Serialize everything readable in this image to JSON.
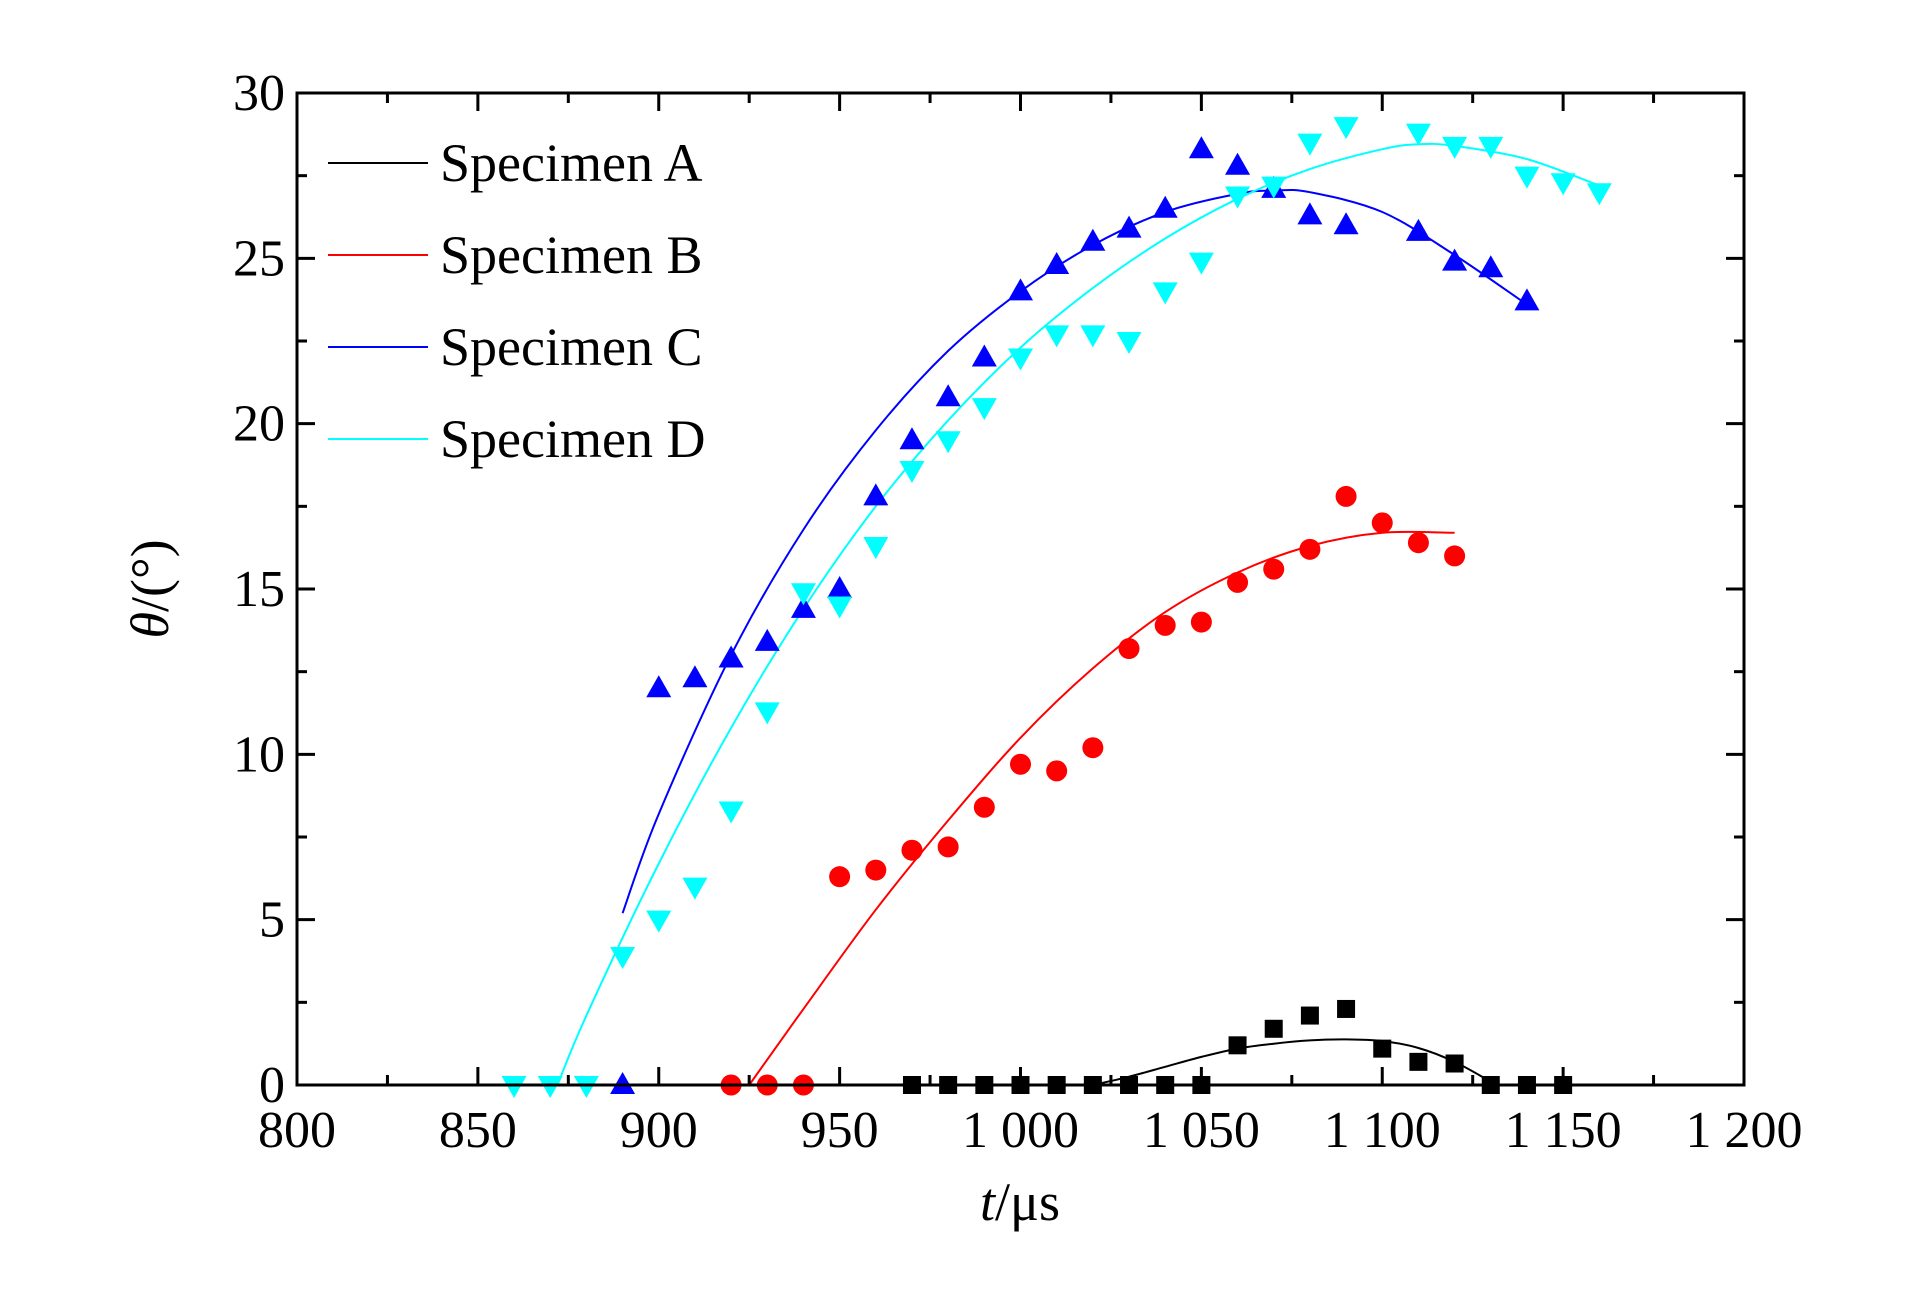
{
  "chart_data": {
    "type": "scatter",
    "xlabel_italic": "t",
    "xlabel_unit": "/μs",
    "ylabel_italic": "θ",
    "ylabel_unit": "/(°)",
    "xlim": [
      800,
      1200
    ],
    "ylim": [
      0,
      30
    ],
    "x_ticks": [
      800,
      850,
      900,
      950,
      1000,
      1050,
      1100,
      1150,
      1200
    ],
    "x_tick_labels": [
      "800",
      "850",
      "900",
      "950",
      "1 000",
      "1 050",
      "1 100",
      "1 150",
      "1 200"
    ],
    "y_ticks": [
      0,
      5,
      10,
      15,
      20,
      25,
      30
    ],
    "y_tick_labels": [
      "0",
      "5",
      "10",
      "15",
      "20",
      "25",
      "30"
    ],
    "grid": false,
    "legend_position": "top-left",
    "series": [
      {
        "name": "Specimen A",
        "color": "#000000",
        "marker": "square",
        "points": [
          [
            970,
            0
          ],
          [
            980,
            0
          ],
          [
            990,
            0
          ],
          [
            1000,
            0
          ],
          [
            1010,
            0
          ],
          [
            1020,
            0
          ],
          [
            1030,
            0
          ],
          [
            1040,
            0
          ],
          [
            1050,
            0
          ],
          [
            1060,
            1.2
          ],
          [
            1070,
            1.7
          ],
          [
            1080,
            2.1
          ],
          [
            1090,
            2.3
          ],
          [
            1100,
            1.1
          ],
          [
            1110,
            0.7
          ],
          [
            1120,
            0.65
          ],
          [
            1130,
            0
          ],
          [
            1140,
            0
          ],
          [
            1150,
            0
          ]
        ],
        "fit": [
          [
            1020,
            0
          ],
          [
            1030,
            0.25
          ],
          [
            1040,
            0.55
          ],
          [
            1050,
            0.85
          ],
          [
            1060,
            1.1
          ],
          [
            1070,
            1.25
          ],
          [
            1080,
            1.35
          ],
          [
            1090,
            1.38
          ],
          [
            1100,
            1.33
          ],
          [
            1110,
            1.12
          ],
          [
            1120,
            0.7
          ],
          [
            1130,
            0.1
          ]
        ]
      },
      {
        "name": "Specimen B",
        "color": "#ff0000",
        "marker": "circle",
        "points": [
          [
            920,
            0
          ],
          [
            930,
            0
          ],
          [
            940,
            0
          ],
          [
            950,
            6.3
          ],
          [
            960,
            6.5
          ],
          [
            970,
            7.1
          ],
          [
            980,
            7.2
          ],
          [
            990,
            8.4
          ],
          [
            1000,
            9.7
          ],
          [
            1010,
            9.5
          ],
          [
            1020,
            10.2
          ],
          [
            1030,
            13.2
          ],
          [
            1040,
            13.9
          ],
          [
            1050,
            14.0
          ],
          [
            1060,
            15.2
          ],
          [
            1070,
            15.6
          ],
          [
            1080,
            16.2
          ],
          [
            1090,
            17.8
          ],
          [
            1100,
            17.0
          ],
          [
            1110,
            16.4
          ],
          [
            1120,
            16.0
          ]
        ],
        "fit": [
          [
            925,
            0
          ],
          [
            940,
            2.3
          ],
          [
            960,
            5.3
          ],
          [
            980,
            8.0
          ],
          [
            1000,
            10.5
          ],
          [
            1020,
            12.6
          ],
          [
            1040,
            14.3
          ],
          [
            1060,
            15.5
          ],
          [
            1080,
            16.3
          ],
          [
            1100,
            16.7
          ],
          [
            1120,
            16.7
          ]
        ]
      },
      {
        "name": "Specimen C",
        "color": "#0000ff",
        "marker": "triangle-up",
        "points": [
          [
            890,
            0
          ],
          [
            900,
            12.0
          ],
          [
            910,
            12.3
          ],
          [
            920,
            12.9
          ],
          [
            930,
            13.4
          ],
          [
            940,
            14.4
          ],
          [
            950,
            15.0
          ],
          [
            960,
            17.8
          ],
          [
            970,
            19.5
          ],
          [
            980,
            20.8
          ],
          [
            990,
            22.0
          ],
          [
            1000,
            24.0
          ],
          [
            1010,
            24.8
          ],
          [
            1020,
            25.5
          ],
          [
            1030,
            25.9
          ],
          [
            1040,
            26.5
          ],
          [
            1050,
            28.3
          ],
          [
            1060,
            27.8
          ],
          [
            1070,
            27.1
          ],
          [
            1080,
            26.3
          ],
          [
            1090,
            26.0
          ],
          [
            1110,
            25.8
          ],
          [
            1120,
            24.9
          ],
          [
            1130,
            24.7
          ],
          [
            1140,
            23.7
          ]
        ],
        "fit": [
          [
            890,
            5.2
          ],
          [
            900,
            8.2
          ],
          [
            920,
            13.0
          ],
          [
            940,
            16.8
          ],
          [
            960,
            19.8
          ],
          [
            980,
            22.2
          ],
          [
            1000,
            24.0
          ],
          [
            1020,
            25.4
          ],
          [
            1040,
            26.4
          ],
          [
            1060,
            26.95
          ],
          [
            1070,
            27.05
          ],
          [
            1080,
            27.0
          ],
          [
            1100,
            26.4
          ],
          [
            1120,
            25.1
          ],
          [
            1140,
            23.6
          ]
        ]
      },
      {
        "name": "Specimen D",
        "color": "#00ffff",
        "marker": "triangle-down",
        "points": [
          [
            860,
            0
          ],
          [
            870,
            0
          ],
          [
            880,
            0
          ],
          [
            890,
            3.9
          ],
          [
            900,
            5.0
          ],
          [
            910,
            6.0
          ],
          [
            920,
            8.3
          ],
          [
            930,
            11.3
          ],
          [
            940,
            14.9
          ],
          [
            950,
            14.5
          ],
          [
            960,
            16.3
          ],
          [
            970,
            18.6
          ],
          [
            980,
            19.5
          ],
          [
            990,
            20.5
          ],
          [
            1000,
            22.0
          ],
          [
            1010,
            22.7
          ],
          [
            1020,
            22.7
          ],
          [
            1030,
            22.5
          ],
          [
            1040,
            24.0
          ],
          [
            1050,
            24.9
          ],
          [
            1060,
            26.9
          ],
          [
            1070,
            27.2
          ],
          [
            1080,
            28.5
          ],
          [
            1090,
            29.0
          ],
          [
            1110,
            28.8
          ],
          [
            1120,
            28.4
          ],
          [
            1130,
            28.4
          ],
          [
            1140,
            27.5
          ],
          [
            1150,
            27.3
          ],
          [
            1160,
            27.0
          ]
        ],
        "fit": [
          [
            872,
            0
          ],
          [
            880,
            2.1
          ],
          [
            900,
            6.7
          ],
          [
            920,
            10.8
          ],
          [
            940,
            14.4
          ],
          [
            960,
            17.5
          ],
          [
            980,
            20.1
          ],
          [
            1000,
            22.3
          ],
          [
            1020,
            24.1
          ],
          [
            1040,
            25.6
          ],
          [
            1060,
            26.8
          ],
          [
            1080,
            27.7
          ],
          [
            1100,
            28.3
          ],
          [
            1110,
            28.45
          ],
          [
            1120,
            28.4
          ],
          [
            1140,
            28.0
          ],
          [
            1160,
            27.2
          ]
        ]
      }
    ]
  }
}
